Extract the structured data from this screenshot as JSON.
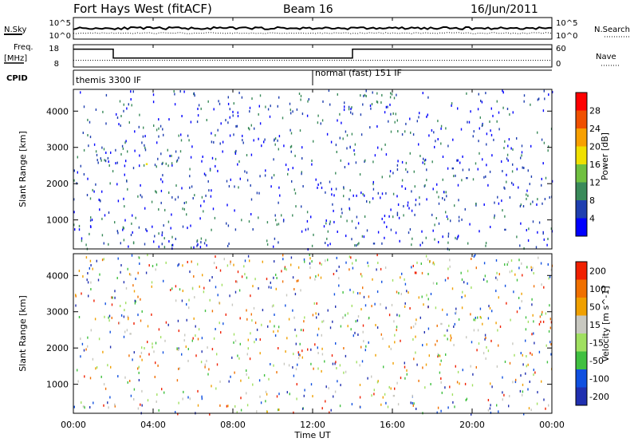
{
  "header": {
    "station": "Fort Hays West (fitACF)",
    "beam": "Beam 16",
    "date": "16/Jun/2011"
  },
  "side_labels": {
    "nsky": "N.Sky",
    "nsearch": "N.Search",
    "freq_line1": "Freq.",
    "freq_line2": "[MHz]",
    "nave": "Nave",
    "cpid": "CPID"
  },
  "colors": {
    "power": [
      "#0000ff",
      "#1f3fb0",
      "#3a8a5a",
      "#70c040",
      "#f0e000",
      "#f8a000",
      "#f05000",
      "#ff0000"
    ],
    "velocity": [
      "#2030b0",
      "#1050e0",
      "#40c040",
      "#a0e060",
      "#c8c8c0",
      "#f0a000",
      "#f07000",
      "#f02000"
    ]
  },
  "chart_data": [
    {
      "type": "line",
      "name": "noise",
      "ylabel_left": "N.Sky",
      "ylabel_right": "N.Search",
      "yticks_left": [
        "10^5",
        "10^0"
      ],
      "yticks_right": [
        "10^5",
        "10^0"
      ],
      "series": [
        {
          "name": "N.Sky",
          "style": "solid",
          "level": 0.45
        },
        {
          "name": "N.Search",
          "style": "dotted",
          "level": 0.25
        }
      ]
    },
    {
      "type": "line",
      "name": "frequency",
      "ylabel_left": "Freq. [MHz]",
      "ylabel_right": "Nave",
      "yticks_left": [
        "18",
        "8"
      ],
      "yticks_right": [
        "60",
        "0"
      ],
      "x": [
        0,
        2,
        2,
        14,
        14,
        24
      ],
      "freq": [
        16,
        16,
        12,
        12,
        16,
        16
      ],
      "nave_level": 0.3
    },
    {
      "type": "table",
      "name": "cpid",
      "label": "CPID",
      "segments": [
        {
          "start": 0,
          "end": 12,
          "text": "themis 3300 IF"
        },
        {
          "start": 12,
          "end": 24,
          "text": "normal (fast) 151 IF"
        }
      ]
    },
    {
      "type": "heatmap",
      "name": "power",
      "ylabel": "Slant Range [km]",
      "yticks": [
        "1000",
        "2000",
        "3000",
        "4000"
      ],
      "ylim": [
        200,
        4600
      ],
      "xlim": [
        0,
        24
      ],
      "colorbar_label": "Power [dB]",
      "colorbar_ticks": [
        "4",
        "8",
        "12",
        "16",
        "20",
        "24",
        "28"
      ]
    },
    {
      "type": "heatmap",
      "name": "velocity",
      "ylabel": "Slant Range [km]",
      "yticks": [
        "1000",
        "2000",
        "3000",
        "4000"
      ],
      "ylim": [
        200,
        4600
      ],
      "xlim": [
        0,
        24
      ],
      "colorbar_label": "Velocity [m s^-1]",
      "colorbar_ticks": [
        "200",
        "100",
        "50",
        "15",
        "-15",
        "-50",
        "-100",
        "-200"
      ]
    }
  ],
  "xaxis": {
    "label": "Time UT",
    "ticks": [
      "00:00",
      "04:00",
      "08:00",
      "12:00",
      "16:00",
      "20:00",
      "00:00"
    ]
  }
}
